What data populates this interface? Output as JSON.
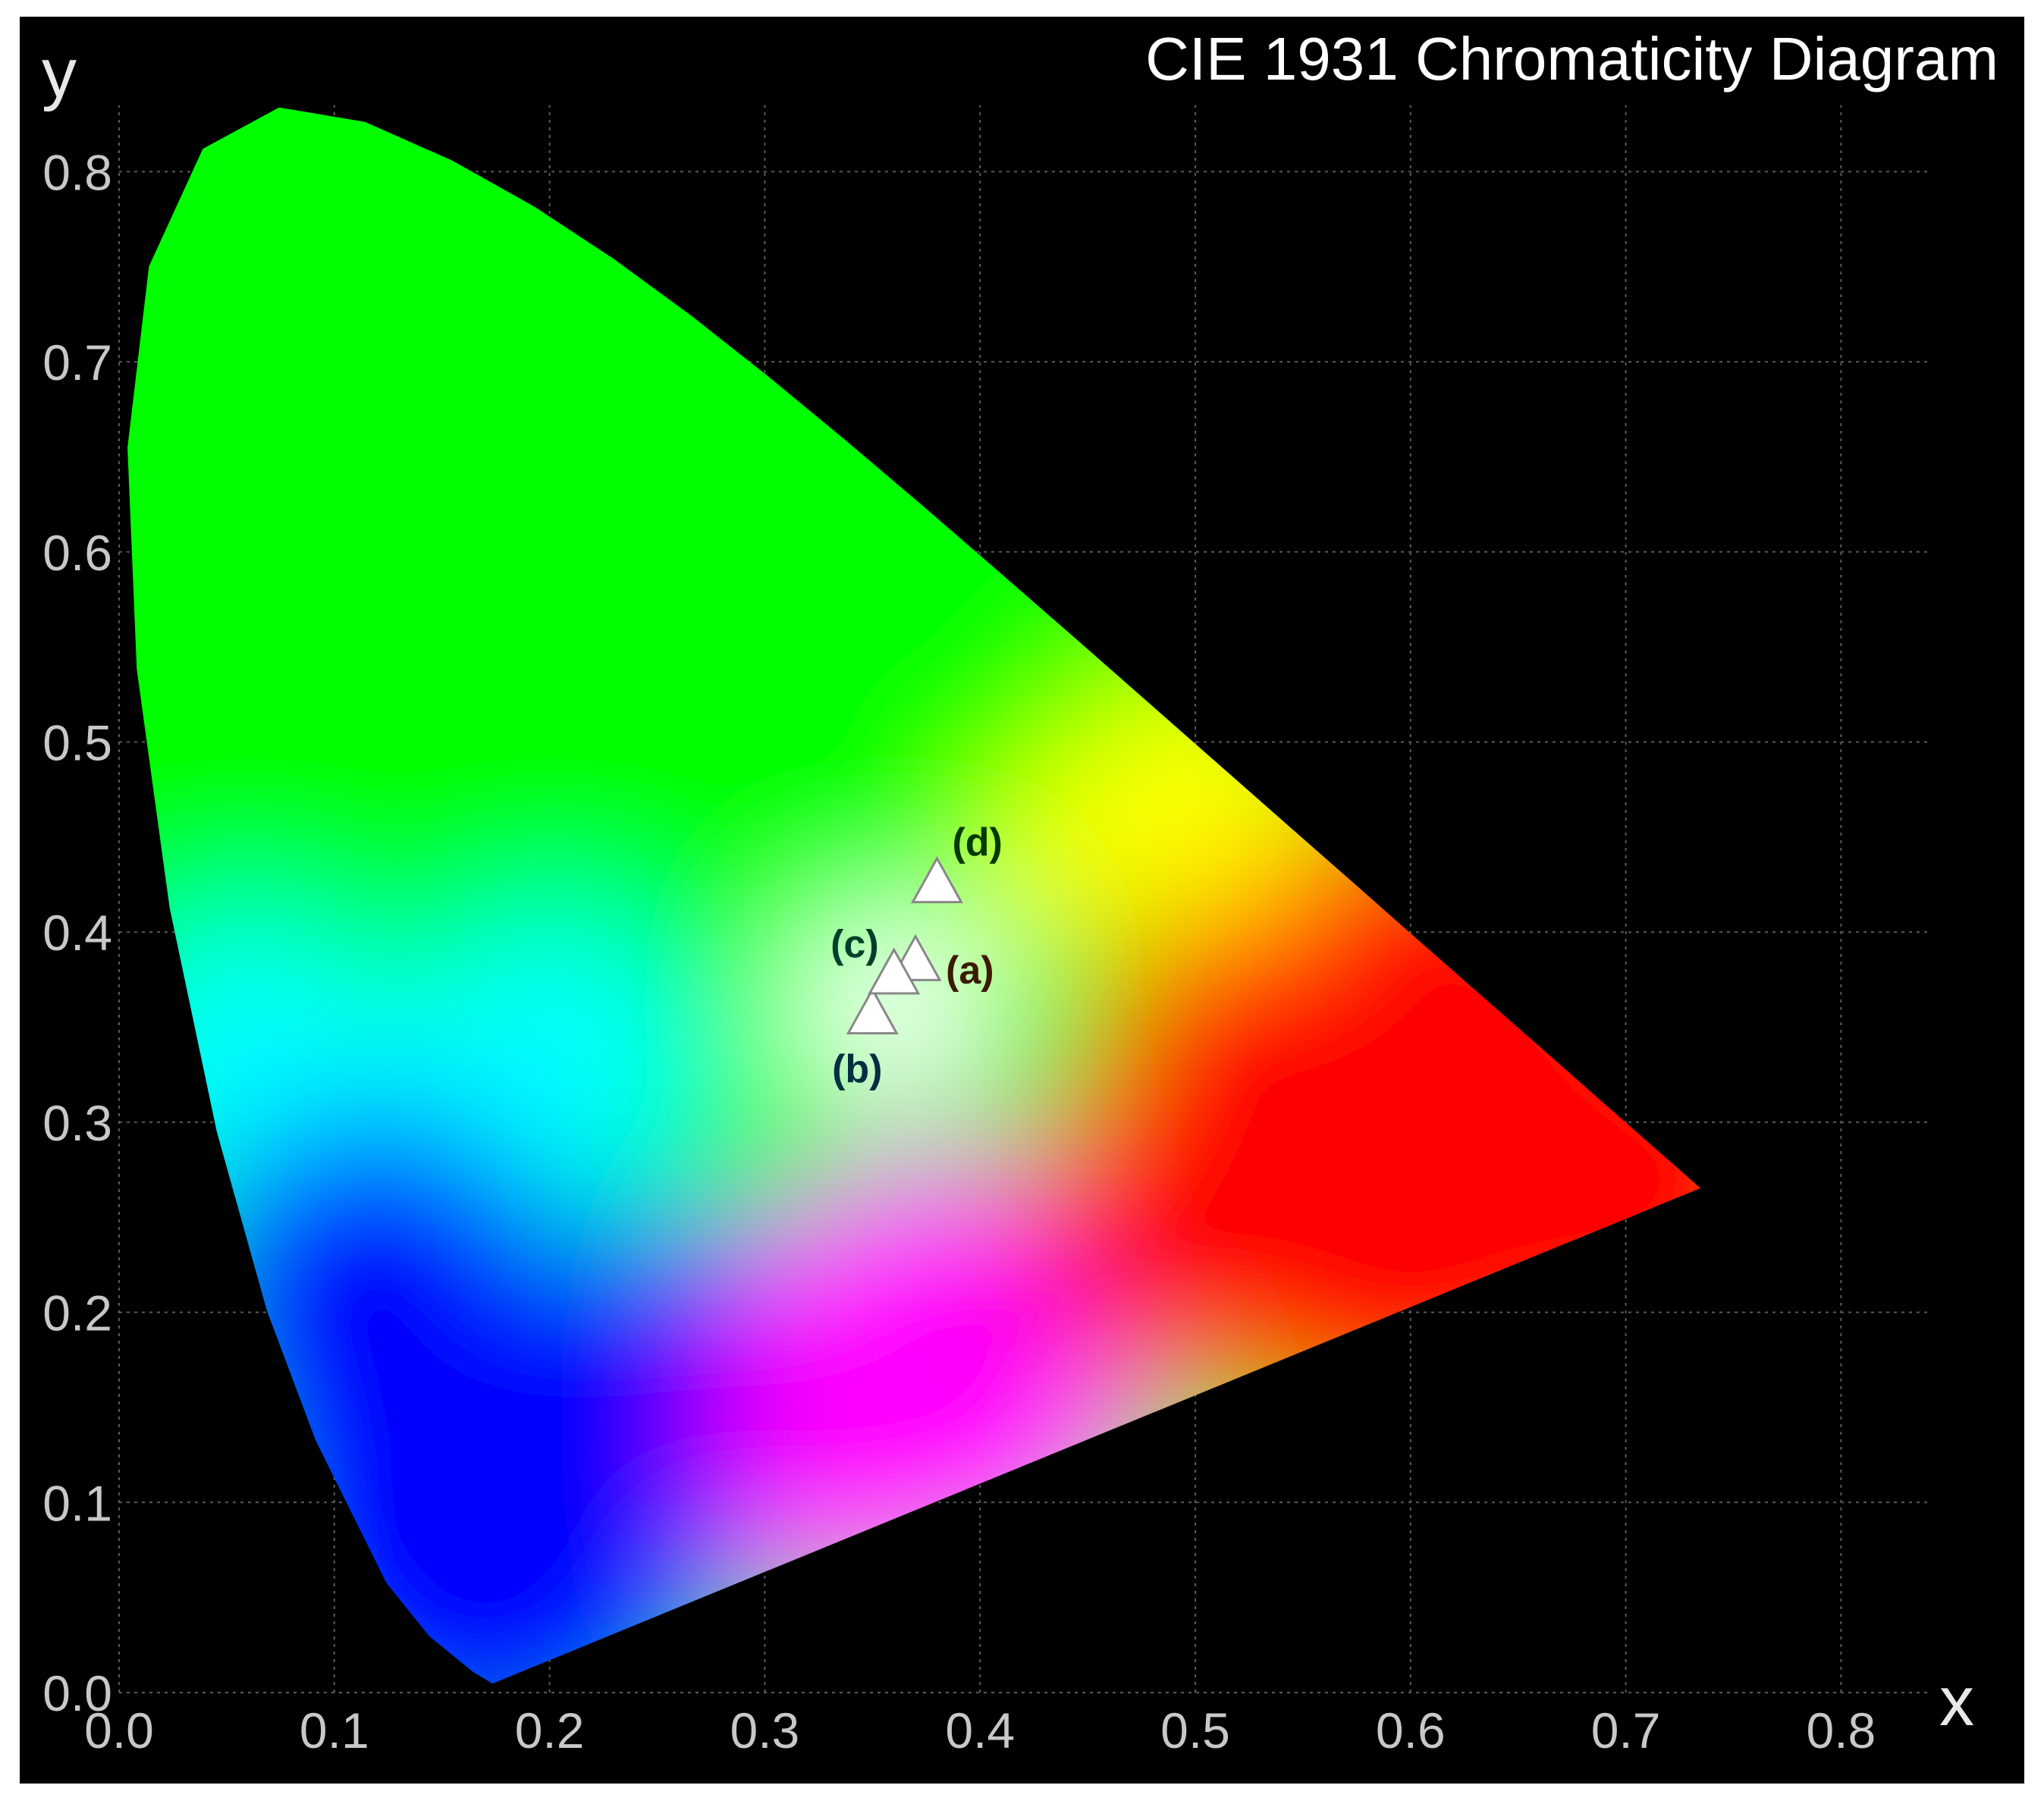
{
  "chart_data": {
    "type": "scatter",
    "title": "CIE 1931 Chromaticity Diagram",
    "xlabel": "x",
    "ylabel": "y",
    "xlim": [
      0.0,
      0.87
    ],
    "ylim": [
      0.0,
      0.86
    ],
    "grid": true,
    "x_ticks": [
      "0.0",
      "0.1",
      "0.2",
      "0.3",
      "0.4",
      "0.5",
      "0.6",
      "0.7",
      "0.8"
    ],
    "y_ticks": [
      "0.0",
      "0.1",
      "0.2",
      "0.3",
      "0.4",
      "0.5",
      "0.6",
      "0.7",
      "0.8"
    ],
    "spectral_locus": [
      [
        0.1741,
        0.005
      ],
      [
        0.1733,
        0.0048
      ],
      [
        0.1644,
        0.0109
      ],
      [
        0.144,
        0.0297
      ],
      [
        0.1241,
        0.0578
      ],
      [
        0.0913,
        0.1327
      ],
      [
        0.0687,
        0.2007
      ],
      [
        0.0454,
        0.295
      ],
      [
        0.0235,
        0.4127
      ],
      [
        0.0082,
        0.5384
      ],
      [
        0.0039,
        0.6548
      ],
      [
        0.0139,
        0.7502
      ],
      [
        0.0389,
        0.812
      ],
      [
        0.0743,
        0.8338
      ],
      [
        0.1142,
        0.8262
      ],
      [
        0.1547,
        0.8059
      ],
      [
        0.1929,
        0.7816
      ],
      [
        0.2296,
        0.7543
      ],
      [
        0.2658,
        0.7243
      ],
      [
        0.3016,
        0.6923
      ],
      [
        0.3373,
        0.6589
      ],
      [
        0.3731,
        0.6245
      ],
      [
        0.4087,
        0.5896
      ],
      [
        0.4441,
        0.5547
      ],
      [
        0.4788,
        0.5202
      ],
      [
        0.5125,
        0.4866
      ],
      [
        0.5448,
        0.4544
      ],
      [
        0.5752,
        0.4242
      ],
      [
        0.6029,
        0.3965
      ],
      [
        0.627,
        0.3725
      ],
      [
        0.6482,
        0.3514
      ],
      [
        0.6658,
        0.334
      ],
      [
        0.6915,
        0.3083
      ],
      [
        0.714,
        0.2859
      ],
      [
        0.7347,
        0.2653
      ]
    ],
    "points": [
      {
        "label": "(a)",
        "x": 0.37,
        "y": 0.385
      },
      {
        "label": "(b)",
        "x": 0.35,
        "y": 0.357
      },
      {
        "label": "(c)",
        "x": 0.36,
        "y": 0.378
      },
      {
        "label": "(d)",
        "x": 0.38,
        "y": 0.426
      }
    ],
    "colors": {
      "background": "#000000",
      "green": "#00ff00",
      "cyan": "#00ffff",
      "blue": "#0000ff",
      "magenta": "#ff00ff",
      "red": "#ff0000",
      "yellow": "#ffff00",
      "white": "#ffffff",
      "marker_fill": "#ffffff",
      "marker_stroke": "#888888"
    }
  }
}
